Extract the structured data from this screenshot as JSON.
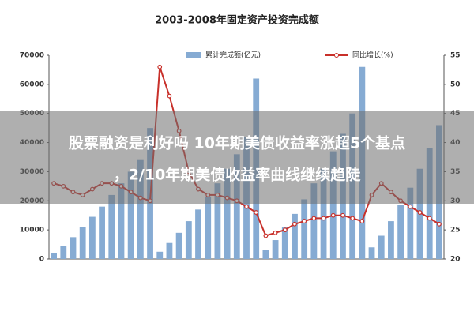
{
  "chart_data": {
    "type": "bar-line",
    "title": "2003-2008年固定资产投资完成额",
    "categories": [
      null,
      null,
      null,
      null,
      null,
      null,
      null,
      null,
      null,
      null,
      null,
      null,
      null,
      null,
      null,
      null,
      null,
      null,
      null,
      null,
      null,
      null,
      null,
      null,
      null,
      null,
      null,
      null,
      null,
      null,
      null,
      null,
      null,
      null,
      null,
      null,
      null,
      null,
      null,
      null,
      null
    ],
    "series": [
      {
        "name": "累计完成额(亿元)",
        "color": "#86abd3",
        "axis": "y",
        "values": [
          2000,
          4500,
          7500,
          11000,
          14500,
          18000,
          22000,
          26000,
          30000,
          34000,
          45000,
          2500,
          5500,
          9000,
          13000,
          17000,
          21500,
          26000,
          31000,
          36000,
          42000,
          62000,
          3000,
          6500,
          11000,
          15500,
          20500,
          26000,
          31000,
          37000,
          43000,
          50000,
          66000,
          4000,
          8000,
          13000,
          18500,
          24500,
          31000,
          38000,
          46000
        ]
      },
      {
        "name": "同比增长(%)",
        "color": "#c8302a",
        "axis": "y2",
        "values": [
          33,
          32.5,
          31.5,
          31,
          32,
          33,
          33,
          32.5,
          31.5,
          30.5,
          30,
          53,
          48,
          42,
          35,
          32,
          31,
          31,
          30.5,
          30,
          29,
          28,
          24,
          24.5,
          25,
          26,
          26.5,
          27,
          27,
          27.5,
          27.5,
          27,
          26.5,
          31,
          33,
          31.5,
          30,
          29,
          28,
          27,
          26
        ]
      }
    ],
    "ylim": [
      0,
      70000
    ],
    "yticks": [
      0,
      10000,
      20000,
      30000,
      40000,
      50000,
      60000,
      70000
    ],
    "y2lim": [
      20,
      55
    ],
    "y2ticks": [
      20,
      25,
      30,
      35,
      40,
      45,
      50,
      55
    ]
  },
  "overlay": {
    "lines": [
      "股票融资是利好吗 10年期美债收益率涨超5个基点",
      "，2/10年期美债收益率曲线继续趋陡"
    ]
  }
}
